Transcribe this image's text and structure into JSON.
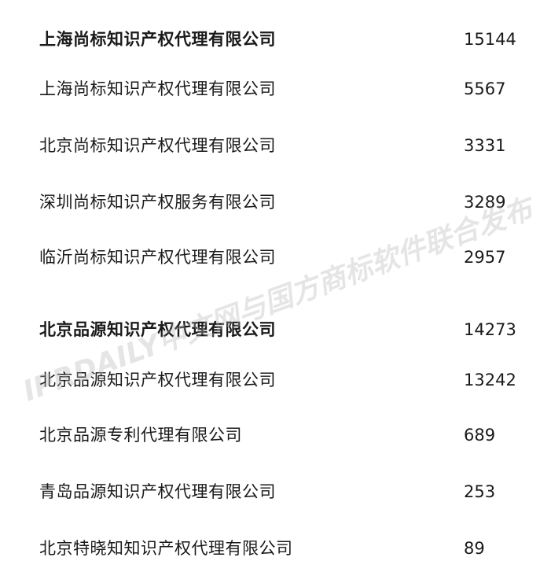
{
  "rows": [
    {
      "name": "上海尚标知识产权代理有限公司",
      "value": "15144",
      "bold": true
    },
    {
      "name": "上海尚标知识产权代理有限公司",
      "value": "5567"
    },
    {
      "name": "北京尚标知识产权代理有限公司",
      "value": "3331"
    },
    {
      "name": "深圳尚标知识产权服务有限公司",
      "value": "3289"
    },
    {
      "name": "临沂尚标知识产权代理有限公司",
      "value": "2957"
    },
    {
      "name": "北京品源知识产权代理有限公司",
      "value": "14273",
      "bold": true
    },
    {
      "name": "北京品源知识产权代理有限公司",
      "value": "13242"
    },
    {
      "name": "北京品源专利代理有限公司",
      "value": "689"
    },
    {
      "name": "青岛品源知识产权代理有限公司",
      "value": "253"
    },
    {
      "name": "北京特晓知知识产权代理有限公司",
      "value": "89"
    }
  ],
  "watermark": "IPRDAILY中文网与国方商标软件联合发布"
}
